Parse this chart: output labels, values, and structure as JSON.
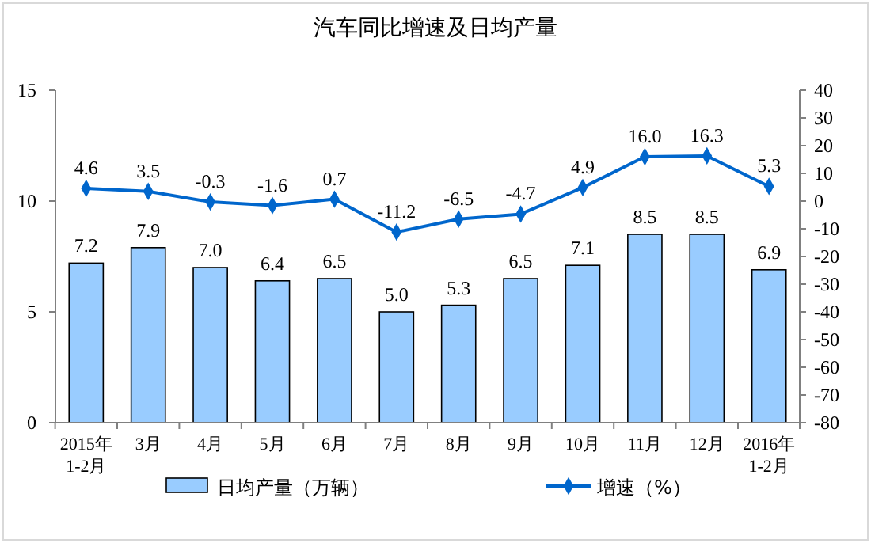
{
  "chart_data": {
    "type": "bar",
    "title": "汽车同比增速及日均产量",
    "categories": [
      "2015年\n1-2月",
      "3月",
      "4月",
      "5月",
      "6月",
      "7月",
      "8月",
      "9月",
      "10月",
      "11月",
      "12月",
      "2016年\n1-2月"
    ],
    "series": [
      {
        "name": "日均产量（万辆）",
        "color": "#99ccff",
        "values": [
          7.2,
          7.9,
          7.0,
          6.4,
          6.5,
          5.0,
          5.3,
          6.5,
          7.1,
          8.5,
          8.5,
          6.9
        ],
        "value_labels": [
          "7.2",
          "7.9",
          "7.0",
          "6.4",
          "6.5",
          "5.0",
          "5.3",
          "6.5",
          "7.1",
          "8.5",
          "8.5",
          "6.9"
        ]
      },
      {
        "name": "增速（%）",
        "type": "line",
        "axis": "y2",
        "color": "#0066cc",
        "marker": "diamond",
        "values": [
          4.6,
          3.5,
          -0.3,
          -1.6,
          0.7,
          -11.2,
          -6.5,
          -4.7,
          4.9,
          16.0,
          16.3,
          5.3
        ],
        "value_labels": [
          "4.6",
          "3.5",
          "-0.3",
          "-1.6",
          "0.7",
          "-11.2",
          "-6.5",
          "-4.7",
          "4.9",
          "16.0",
          "16.3",
          "5.3"
        ]
      }
    ],
    "ylim": [
      0,
      15
    ],
    "yticks": [
      0,
      5,
      10,
      15
    ],
    "y2lim": [
      -80,
      40
    ],
    "y2ticks": [
      -80,
      -70,
      -60,
      -50,
      -40,
      -30,
      -20,
      -10,
      0,
      10,
      20,
      30,
      40
    ],
    "legend": "bottom"
  }
}
